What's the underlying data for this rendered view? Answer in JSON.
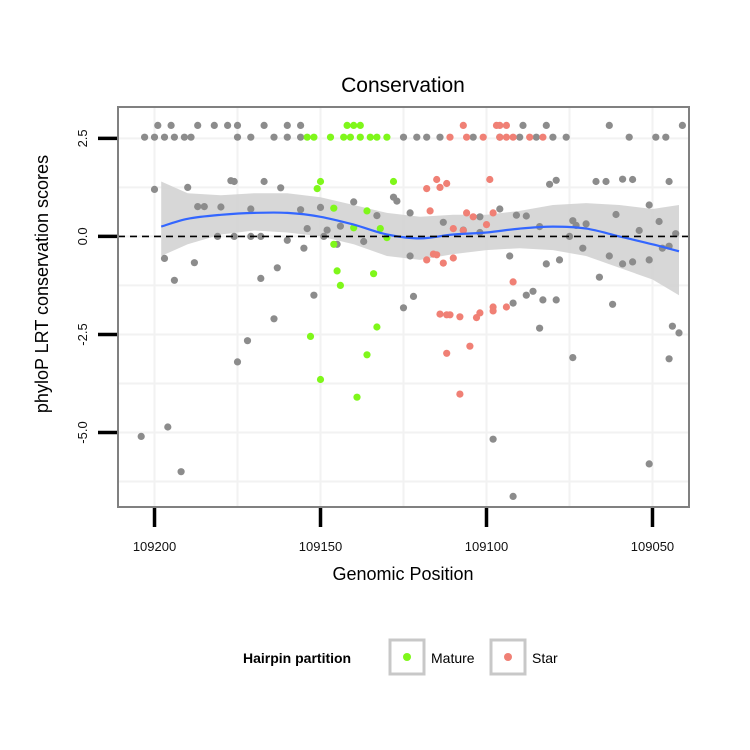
{
  "chart_data": {
    "type": "scatter",
    "title": "Conservation",
    "xlabel": "Genomic Position",
    "ylabel": "phyloP LRT conservation scores",
    "x_reversed": true,
    "xlim": [
      109211,
      109039
    ],
    "ylim": [
      -6.9,
      3.3
    ],
    "x_ticks": [
      109200,
      109150,
      109100,
      109050
    ],
    "x_tick_labels": [
      "109200",
      "109150",
      "109100",
      "109050"
    ],
    "y_ticks": [
      2.5,
      0.0,
      -2.5,
      -5.0
    ],
    "y_tick_labels": [
      "2.5",
      "0.0",
      "-2.5",
      "-5.0"
    ],
    "grid": true,
    "reference_line": {
      "y": 0,
      "style": "dashed"
    },
    "legend": {
      "title": "Hairpin partition",
      "placement": "bottom",
      "entries": [
        {
          "name": "Mature",
          "color": "#7ff71a"
        },
        {
          "name": "Star",
          "color": "#f08075"
        }
      ]
    },
    "colors": {
      "other": "#8c8c8c",
      "Mature": "#7ff71a",
      "Star": "#f08075",
      "smooth_line": "#3366ff",
      "ribbon": "#d3d3d3"
    },
    "series": [
      {
        "name": "",
        "color": "#8c8c8c",
        "points": [
          [
            109203,
            2.53
          ],
          [
            109200,
            2.53
          ],
          [
            109197,
            2.53
          ],
          [
            109194,
            2.53
          ],
          [
            109191,
            2.53
          ],
          [
            109189,
            2.53
          ],
          [
            109199,
            2.83
          ],
          [
            109195,
            2.83
          ],
          [
            109187,
            2.83
          ],
          [
            109182,
            2.83
          ],
          [
            109178,
            2.83
          ],
          [
            109175,
            2.83
          ],
          [
            109167,
            2.83
          ],
          [
            109160,
            2.83
          ],
          [
            109156,
            2.83
          ],
          [
            109175,
            2.53
          ],
          [
            109171,
            2.53
          ],
          [
            109164,
            2.53
          ],
          [
            109160,
            2.53
          ],
          [
            109156,
            2.53
          ],
          [
            109125,
            2.53
          ],
          [
            109121,
            2.53
          ],
          [
            109118,
            2.53
          ],
          [
            109114,
            2.53
          ],
          [
            109104,
            2.53
          ],
          [
            109096,
            2.53
          ],
          [
            109090,
            2.53
          ],
          [
            109085,
            2.53
          ],
          [
            109080,
            2.53
          ],
          [
            109076,
            2.53
          ],
          [
            109057,
            2.53
          ],
          [
            109049,
            2.53
          ],
          [
            109046,
            2.53
          ],
          [
            109089,
            2.83
          ],
          [
            109082,
            2.83
          ],
          [
            109063,
            2.83
          ],
          [
            109041,
            2.83
          ],
          [
            109200,
            1.2
          ],
          [
            109190,
            1.25
          ],
          [
            109187,
            0.76
          ],
          [
            109185,
            0.76
          ],
          [
            109180,
            0.75
          ],
          [
            109177,
            1.42
          ],
          [
            109176,
            1.4
          ],
          [
            109171,
            0.7
          ],
          [
            109167,
            1.4
          ],
          [
            109162,
            1.24
          ],
          [
            109156,
            0.68
          ],
          [
            109154,
            0.2
          ],
          [
            109150,
            0.74
          ],
          [
            109148,
            0.16
          ],
          [
            109144,
            0.26
          ],
          [
            109140,
            0.88
          ],
          [
            109137,
            -0.13
          ],
          [
            109133,
            0.53
          ],
          [
            109128,
            1.0
          ],
          [
            109127,
            0.9
          ],
          [
            109123,
            0.6
          ],
          [
            109113,
            0.36
          ],
          [
            109107,
            0.16
          ],
          [
            109102,
            0.5
          ],
          [
            109096,
            0.7
          ],
          [
            109091,
            0.54
          ],
          [
            109088,
            0.52
          ],
          [
            109084,
            0.25
          ],
          [
            109081,
            1.33
          ],
          [
            109079,
            1.43
          ],
          [
            109074,
            0.4
          ],
          [
            109073,
            0.28
          ],
          [
            109070,
            0.32
          ],
          [
            109067,
            1.4
          ],
          [
            109064,
            1.4
          ],
          [
            109061,
            0.56
          ],
          [
            109059,
            1.46
          ],
          [
            109056,
            1.45
          ],
          [
            109054,
            0.15
          ],
          [
            109051,
            0.8
          ],
          [
            109048,
            0.38
          ],
          [
            109045,
            1.4
          ],
          [
            109043,
            0.07
          ],
          [
            109197,
            -0.56
          ],
          [
            109194,
            -1.12
          ],
          [
            109188,
            -0.67
          ],
          [
            109181,
            0.0
          ],
          [
            109176,
            0.0
          ],
          [
            109171,
            0.0
          ],
          [
            109168,
            0.0
          ],
          [
            109168,
            -1.07
          ],
          [
            109163,
            -0.8
          ],
          [
            109160,
            -0.1
          ],
          [
            109155,
            -0.3
          ],
          [
            109152,
            -1.5
          ],
          [
            109149,
            0.0
          ],
          [
            109145,
            -0.2
          ],
          [
            109125,
            -1.82
          ],
          [
            109123,
            -0.5
          ],
          [
            109102,
            0.1
          ],
          [
            109093,
            -0.5
          ],
          [
            109092,
            -1.7
          ],
          [
            109082,
            -0.7
          ],
          [
            109078,
            -0.6
          ],
          [
            109075,
            0.0
          ],
          [
            109071,
            -0.3
          ],
          [
            109066,
            -1.04
          ],
          [
            109063,
            -0.5
          ],
          [
            109059,
            -0.7
          ],
          [
            109056,
            -0.65
          ],
          [
            109051,
            -0.6
          ],
          [
            109047,
            -0.3
          ],
          [
            109045,
            -0.25
          ],
          [
            109204,
            -5.1
          ],
          [
            109196,
            -4.86
          ],
          [
            109192,
            -6.0
          ],
          [
            109175,
            -3.2
          ],
          [
            109172,
            -2.66
          ],
          [
            109164,
            -2.1
          ],
          [
            109098,
            -5.17
          ],
          [
            109092,
            -6.63
          ],
          [
            109084,
            -2.34
          ],
          [
            109074,
            -3.09
          ],
          [
            109051,
            -5.8
          ],
          [
            109045,
            -3.12
          ],
          [
            109044,
            -2.29
          ],
          [
            109042,
            -2.46
          ],
          [
            109122,
            -1.53
          ],
          [
            109083,
            -1.62
          ],
          [
            109079,
            -1.62
          ],
          [
            109062,
            -1.73
          ],
          [
            109088,
            -1.5
          ],
          [
            109086,
            -1.4
          ]
        ]
      },
      {
        "name": "Mature",
        "color": "#7ff71a",
        "points": [
          [
            109154,
            2.53
          ],
          [
            109152,
            2.53
          ],
          [
            109147,
            2.53
          ],
          [
            109143,
            2.53
          ],
          [
            109141,
            2.53
          ],
          [
            109138,
            2.53
          ],
          [
            109135,
            2.53
          ],
          [
            109133,
            2.53
          ],
          [
            109130,
            2.53
          ],
          [
            109142,
            2.83
          ],
          [
            109140,
            2.83
          ],
          [
            109138,
            2.83
          ],
          [
            109151,
            1.22
          ],
          [
            109150,
            1.4
          ],
          [
            109146,
            0.72
          ],
          [
            109136,
            0.65
          ],
          [
            109140,
            0.22
          ],
          [
            109134,
            -0.95
          ],
          [
            109132,
            0.2
          ],
          [
            109130,
            -0.03
          ],
          [
            109128,
            1.4
          ],
          [
            109146,
            -0.2
          ],
          [
            109145,
            -0.88
          ],
          [
            109144,
            -1.25
          ],
          [
            109133,
            -2.31
          ],
          [
            109136,
            -3.02
          ],
          [
            109139,
            -4.1
          ],
          [
            109153,
            -2.55
          ],
          [
            109150,
            -3.65
          ]
        ]
      },
      {
        "name": "Star",
        "color": "#f08075",
        "points": [
          [
            109111,
            2.53
          ],
          [
            109106,
            2.53
          ],
          [
            109101,
            2.53
          ],
          [
            109096,
            2.53
          ],
          [
            109094,
            2.53
          ],
          [
            109092,
            2.53
          ],
          [
            109087,
            2.53
          ],
          [
            109083,
            2.53
          ],
          [
            109107,
            2.83
          ],
          [
            109097,
            2.83
          ],
          [
            109096,
            2.83
          ],
          [
            109094,
            2.83
          ],
          [
            109114,
            1.25
          ],
          [
            109112,
            1.35
          ],
          [
            109117,
            0.65
          ],
          [
            109118,
            1.22
          ],
          [
            109115,
            1.45
          ],
          [
            109099,
            1.45
          ],
          [
            109104,
            0.5
          ],
          [
            109098,
            0.6
          ],
          [
            109106,
            0.6
          ],
          [
            109107,
            0.15
          ],
          [
            109110,
            0.2
          ],
          [
            109100,
            0.3
          ],
          [
            109116,
            -0.45
          ],
          [
            109113,
            -0.68
          ],
          [
            109115,
            -0.47
          ],
          [
            109110,
            -0.55
          ],
          [
            109118,
            -0.6
          ],
          [
            109092,
            -1.16
          ],
          [
            109094,
            -1.8
          ],
          [
            109098,
            -1.9
          ],
          [
            109112,
            -2.0
          ],
          [
            109114,
            -1.98
          ],
          [
            109111,
            -2.0
          ],
          [
            109108,
            -2.05
          ],
          [
            109102,
            -1.95
          ],
          [
            109098,
            -1.8
          ],
          [
            109105,
            -2.8
          ],
          [
            109112,
            -2.98
          ],
          [
            109108,
            -4.02
          ],
          [
            109103,
            -2.07
          ]
        ]
      }
    ],
    "smooth": {
      "x": [
        109198,
        109190,
        109180,
        109170,
        109160,
        109150,
        109140,
        109130,
        109120,
        109110,
        109100,
        109090,
        109080,
        109070,
        109060,
        109050,
        109042
      ],
      "y": [
        0.25,
        0.45,
        0.55,
        0.6,
        0.6,
        0.5,
        0.3,
        0.05,
        -0.05,
        0.05,
        0.1,
        0.2,
        0.25,
        0.2,
        0.0,
        -0.2,
        -0.38
      ],
      "lower": [
        -0.5,
        -0.2,
        0.05,
        0.15,
        0.1,
        0.0,
        -0.2,
        -0.5,
        -0.6,
        -0.45,
        -0.35,
        -0.3,
        -0.35,
        -0.5,
        -0.8,
        -1.1,
        -1.5
      ],
      "upper": [
        1.4,
        1.1,
        1.05,
        1.1,
        1.1,
        1.0,
        0.8,
        0.6,
        0.5,
        0.55,
        0.55,
        0.65,
        0.8,
        0.85,
        0.8,
        0.7,
        0.8
      ]
    }
  }
}
